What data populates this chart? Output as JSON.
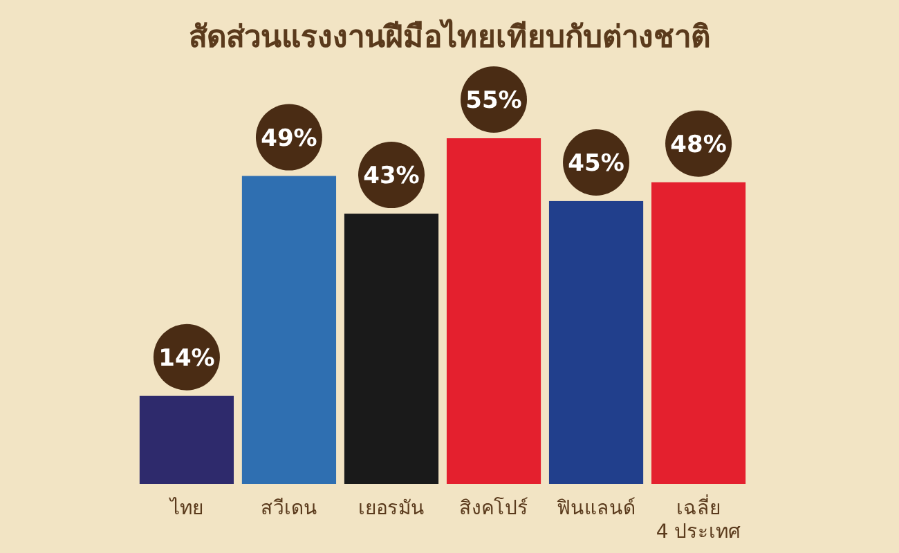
{
  "chart_data": {
    "type": "bar",
    "title": "สัดส่วนแรงงานฝีมือไทยเทียบกับต่างชาติ",
    "categories": [
      "ไทย",
      "สวีเดน",
      "เยอรมัน",
      "สิงคโปร์",
      "ฟินแลนด์",
      "เฉลี่ย\n4 ประเทศ"
    ],
    "values": [
      14,
      49,
      43,
      55,
      45,
      48
    ],
    "colors": [
      "#2e2a6c",
      "#2f6fb1",
      "#1a1a1a",
      "#e4202e",
      "#213f8c",
      "#e4202e"
    ],
    "value_labels": [
      "14%",
      "49%",
      "43%",
      "55%",
      "45%",
      "48%"
    ]
  }
}
